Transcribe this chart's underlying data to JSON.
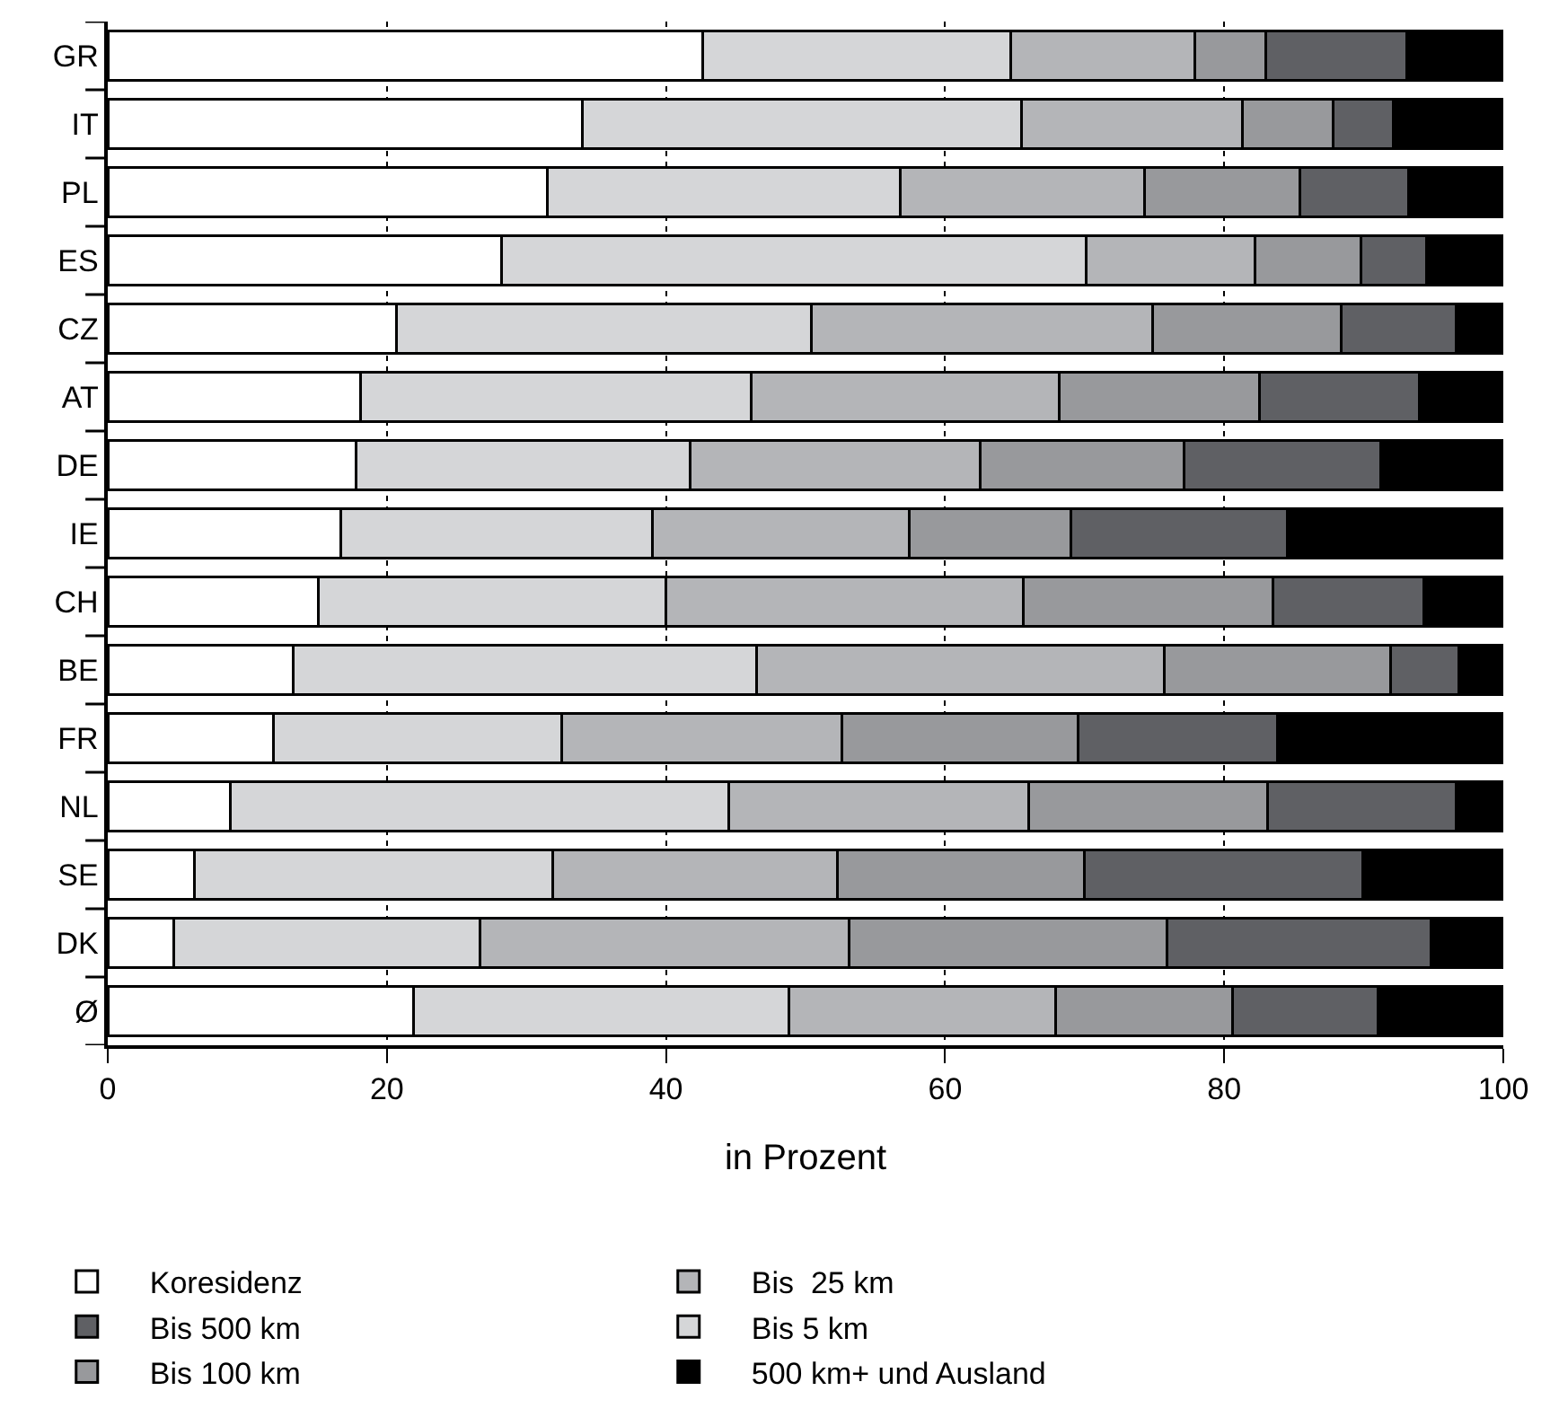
{
  "chart_data": {
    "type": "bar",
    "orientation": "horizontal",
    "stacked": true,
    "xlabel": "in Prozent",
    "xlim": [
      0,
      100
    ],
    "xticks": [
      0,
      20,
      40,
      60,
      80,
      100
    ],
    "grid": "x",
    "legend": "bottom",
    "categories": [
      "GR",
      "IT",
      "PL",
      "ES",
      "CZ",
      "AT",
      "DE",
      "IE",
      "CH",
      "BE",
      "FR",
      "NL",
      "SE",
      "DK",
      "Ø"
    ],
    "series": [
      {
        "name": "Koresidenz",
        "color": "#ffffff",
        "values": [
          42.6,
          34.0,
          31.5,
          28.2,
          20.7,
          18.1,
          17.8,
          16.7,
          15.1,
          13.3,
          11.9,
          8.8,
          6.2,
          4.7,
          21.9
        ]
      },
      {
        "name": "Bis 5 km",
        "color": "#d5d6d8",
        "values": [
          22.1,
          31.5,
          25.3,
          41.9,
          29.7,
          28.0,
          23.9,
          22.3,
          24.9,
          33.2,
          20.6,
          35.7,
          25.7,
          22.0,
          26.9
        ]
      },
      {
        "name": "Bis  25 km",
        "color": "#b4b5b8",
        "values": [
          13.2,
          15.8,
          17.5,
          12.1,
          24.5,
          22.1,
          20.8,
          18.4,
          25.6,
          29.2,
          20.1,
          21.5,
          20.4,
          26.4,
          19.1
        ]
      },
      {
        "name": "Bis 100 km",
        "color": "#98999c",
        "values": [
          5.1,
          6.5,
          11.1,
          7.6,
          13.5,
          14.3,
          14.6,
          11.6,
          17.9,
          16.2,
          16.9,
          17.1,
          17.7,
          22.8,
          12.7
        ]
      },
      {
        "name": "Bis 500 km",
        "color": "#5f6064",
        "values": [
          10.1,
          4.3,
          7.8,
          4.7,
          8.2,
          11.5,
          14.1,
          15.5,
          10.8,
          4.9,
          14.3,
          13.5,
          19.9,
          18.9,
          10.4
        ]
      },
      {
        "name": "500 km+ und Ausland",
        "color": "#000000",
        "values": [
          6.9,
          7.9,
          6.8,
          5.5,
          3.4,
          6.0,
          8.8,
          15.5,
          5.7,
          3.2,
          16.2,
          3.4,
          10.1,
          5.2,
          9.0
        ]
      }
    ]
  }
}
